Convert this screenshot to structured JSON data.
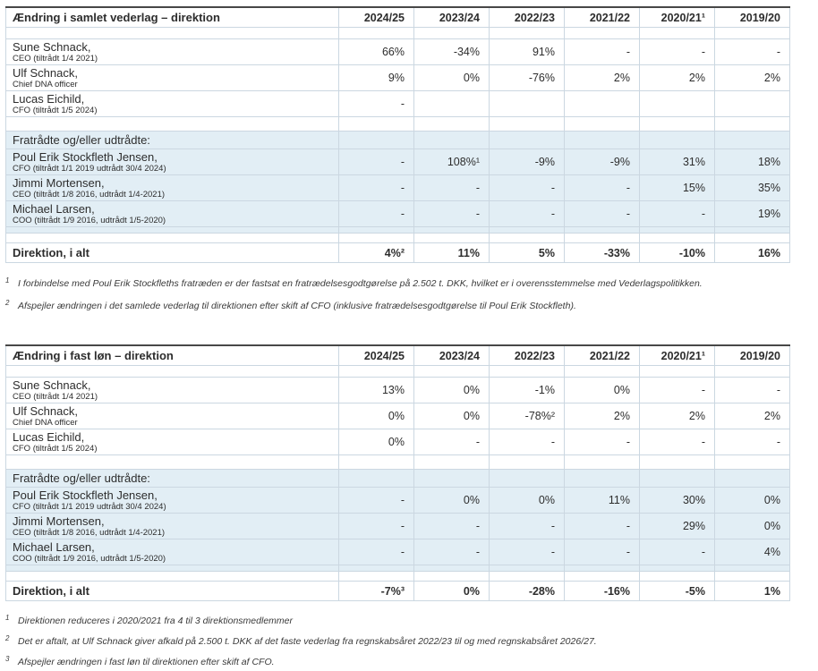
{
  "colors": {
    "section_background": "#e2eef5",
    "grid_line": "#cbd7e1",
    "table_top_border": "#474747",
    "text": "#2d2d2d"
  },
  "tables": [
    {
      "title": "Ændring i samlet vederlag – direktion",
      "columns": [
        "2024/25",
        "2023/24",
        "2022/23",
        "2021/22",
        "2020/21¹",
        "2019/20"
      ],
      "active_rows": [
        {
          "name": "Sune Schnack,",
          "role": "CEO (tiltrådt 1/4 2021)",
          "values": [
            "66%",
            "-34%",
            "91%",
            "-",
            "-",
            "-"
          ]
        },
        {
          "name": "Ulf Schnack,",
          "role": "Chief DNA officer",
          "values": [
            "9%",
            "0%",
            "-76%",
            "2%",
            "2%",
            "2%"
          ]
        },
        {
          "name": "Lucas Eichild,",
          "role": "CFO (tiltrådt 1/5 2024)",
          "values": [
            "-",
            "",
            "",
            "",
            "",
            ""
          ]
        }
      ],
      "section_label": "Fratrådte og/eller udtrådte:",
      "former_rows": [
        {
          "name": "Poul Erik Stockfleth Jensen,",
          "role": "CFO (tiltrådt 1/1 2019 udtrådt 30/4 2024)",
          "values": [
            "-",
            "108%¹",
            "-9%",
            "-9%",
            "31%",
            "18%"
          ]
        },
        {
          "name": "Jimmi Mortensen,",
          "role": "CEO (tiltrådt 1/8 2016, udtrådt 1/4-2021)",
          "values": [
            "-",
            "-",
            "-",
            "-",
            "15%",
            "35%"
          ]
        },
        {
          "name": "Michael Larsen,",
          "role": "COO (tiltrådt 1/9 2016, udtrådt 1/5-2020)",
          "values": [
            "-",
            "-",
            "-",
            "-",
            "-",
            "19%"
          ]
        }
      ],
      "total_label": "Direktion, i alt",
      "total_values": [
        "4%²",
        "11%",
        "5%",
        "-33%",
        "-10%",
        "16%"
      ],
      "footnotes": [
        {
          "marker": "1",
          "text": "I forbindelse med Poul Erik Stockfleths fratræden er der fastsat en fratrædelsesgodtgørelse på 2.502 t. DKK, hvilket er i overensstemmelse med Vederlagspolitikken."
        },
        {
          "marker": "2",
          "text": "Afspejler ændringen i det samlede vederlag til direktionen efter skift af CFO (inklusive fratrædelsesgodtgørelse til Poul Erik Stockfleth)."
        }
      ]
    },
    {
      "title": "Ændring i fast løn – direktion",
      "columns": [
        "2024/25",
        "2023/24",
        "2022/23",
        "2021/22",
        "2020/21¹",
        "2019/20"
      ],
      "active_rows": [
        {
          "name": "Sune Schnack,",
          "role": "CEO (tiltrådt 1/4 2021)",
          "values": [
            "13%",
            "0%",
            "-1%",
            "0%",
            "-",
            "-"
          ]
        },
        {
          "name": "Ulf Schnack,",
          "role": "Chief DNA officer",
          "values": [
            "0%",
            "0%",
            "-78%²",
            "2%",
            "2%",
            "2%"
          ]
        },
        {
          "name": "Lucas Eichild,",
          "role": "CFO (tiltrådt 1/5 2024)",
          "values": [
            "0%",
            "-",
            "-",
            "-",
            "-",
            "-"
          ]
        }
      ],
      "section_label": "Fratrådte og/eller udtrådte:",
      "former_rows": [
        {
          "name": "Poul Erik Stockfleth Jensen,",
          "role": "CFO (tiltrådt 1/1 2019 udtrådt 30/4 2024)",
          "values": [
            "-",
            "0%",
            "0%",
            "11%",
            "30%",
            "0%"
          ]
        },
        {
          "name": "Jimmi Mortensen,",
          "role": "CEO (tiltrådt 1/8 2016, udtrådt 1/4-2021)",
          "values": [
            "-",
            "-",
            "-",
            "-",
            "29%",
            "0%"
          ]
        },
        {
          "name": "Michael Larsen,",
          "role": "COO (tiltrådt 1/9 2016, udtrådt 1/5-2020)",
          "values": [
            "-",
            "-",
            "-",
            "-",
            "-",
            "4%"
          ]
        }
      ],
      "total_label": "Direktion, i alt",
      "total_values": [
        "-7%³",
        "0%",
        "-28%",
        "-16%",
        "-5%",
        "1%"
      ],
      "footnotes": [
        {
          "marker": "1",
          "text": "Direktionen reduceres i 2020/2021 fra 4 til 3 direktionsmedlemmer"
        },
        {
          "marker": "2",
          "text": "Det er aftalt, at Ulf Schnack giver afkald på 2.500 t. DKK af det faste vederlag fra regnskabsåret 2022/23 til og med regnskabsåret 2026/27."
        },
        {
          "marker": "3",
          "text": "Afspejler ændringen i fast løn til direktionen efter skift af CFO."
        }
      ]
    }
  ]
}
